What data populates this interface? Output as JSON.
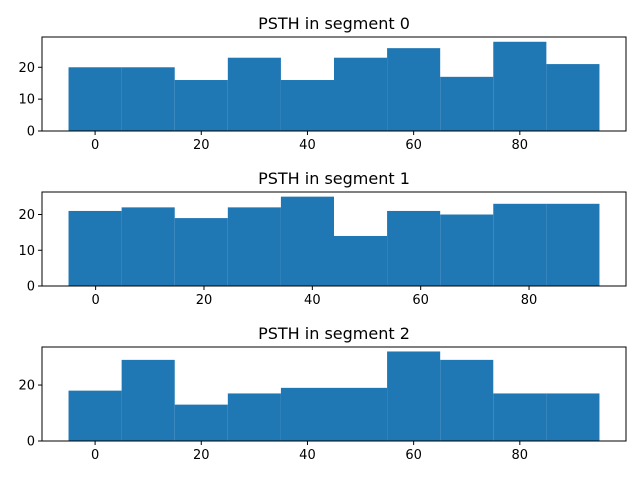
{
  "chart_data": [
    {
      "type": "bar",
      "title": "PSTH in segment 0",
      "bin_edges": [
        -5,
        5,
        15,
        25,
        35,
        45,
        55,
        65,
        75,
        85,
        95
      ],
      "values": [
        20,
        20,
        16,
        23,
        16,
        23,
        26,
        17,
        28,
        21
      ],
      "xlim": [
        -10,
        100
      ],
      "ylim": [
        0,
        29.5
      ],
      "xticks": [
        0,
        20,
        40,
        60,
        80
      ],
      "yticks": [
        0,
        10,
        20
      ],
      "color": "#1f77b4"
    },
    {
      "type": "bar",
      "title": "PSTH in segment 1",
      "bin_edges": [
        -5,
        4.8,
        14.6,
        24.4,
        34.2,
        44,
        53.8,
        63.6,
        73.4,
        83.2,
        93
      ],
      "values": [
        21,
        22,
        19,
        22,
        25,
        14,
        21,
        20,
        23,
        23
      ],
      "xlim": [
        -9.9,
        97.9
      ],
      "ylim": [
        0,
        26.3
      ],
      "xticks": [
        0,
        20,
        40,
        60,
        80
      ],
      "yticks": [
        0,
        10,
        20
      ],
      "color": "#1f77b4"
    },
    {
      "type": "bar",
      "title": "PSTH in segment 2",
      "bin_edges": [
        -5,
        5,
        15,
        25,
        35,
        45,
        55,
        65,
        75,
        85,
        95
      ],
      "values": [
        18,
        29,
        13,
        17,
        19,
        19,
        32,
        29,
        17,
        17
      ],
      "xlim": [
        -10,
        100
      ],
      "ylim": [
        0,
        33.6
      ],
      "xticks": [
        0,
        20,
        40,
        60,
        80
      ],
      "yticks": [
        0,
        20
      ],
      "color": "#1f77b4"
    }
  ]
}
